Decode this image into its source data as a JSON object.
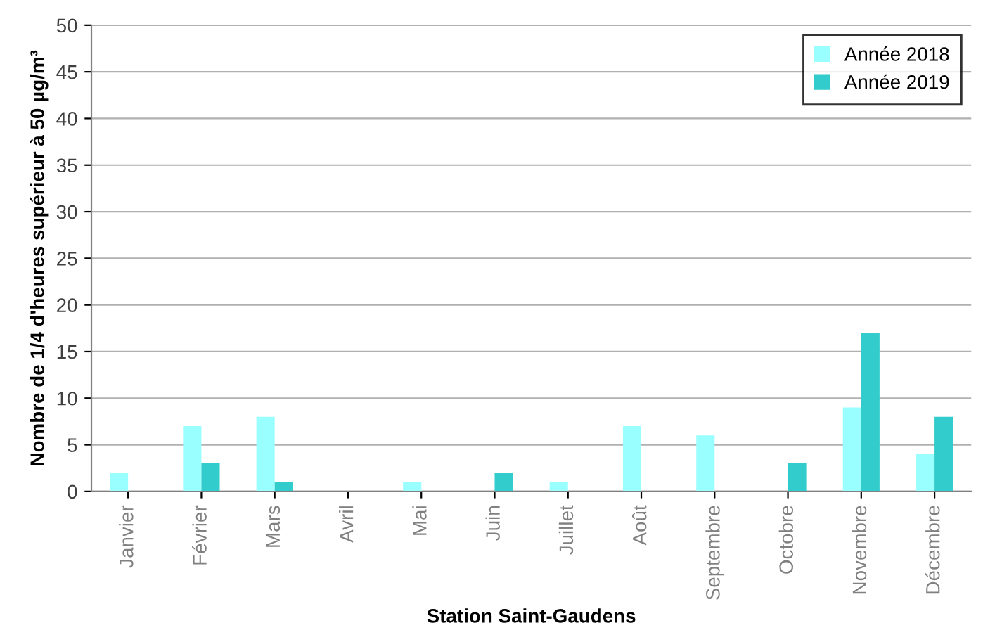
{
  "chart_data": {
    "type": "bar",
    "xlabel": "Station Saint-Gaudens",
    "ylabel": "Nombre de 1/4 d'heures supérieur à 50 µg/m³",
    "categories": [
      "Janvier",
      "Février",
      "Mars",
      "Avril",
      "Mai",
      "Juin",
      "Juillet",
      "Août",
      "Septembre",
      "Octobre",
      "Novembre",
      "Décembre"
    ],
    "series": [
      {
        "name": "Année 2018",
        "color": "#99ffff",
        "values": [
          2,
          7,
          8,
          0,
          1,
          0,
          1,
          7,
          6,
          0,
          9,
          4
        ]
      },
      {
        "name": "Année 2019",
        "color": "#33cccc",
        "values": [
          0,
          3,
          1,
          0,
          0,
          2,
          0,
          0,
          0,
          3,
          17,
          8
        ]
      }
    ],
    "ylim": [
      0,
      50
    ],
    "yticks": [
      0,
      5,
      10,
      15,
      20,
      25,
      30,
      35,
      40,
      45,
      50
    ],
    "grid": "y",
    "legend": "top right"
  }
}
